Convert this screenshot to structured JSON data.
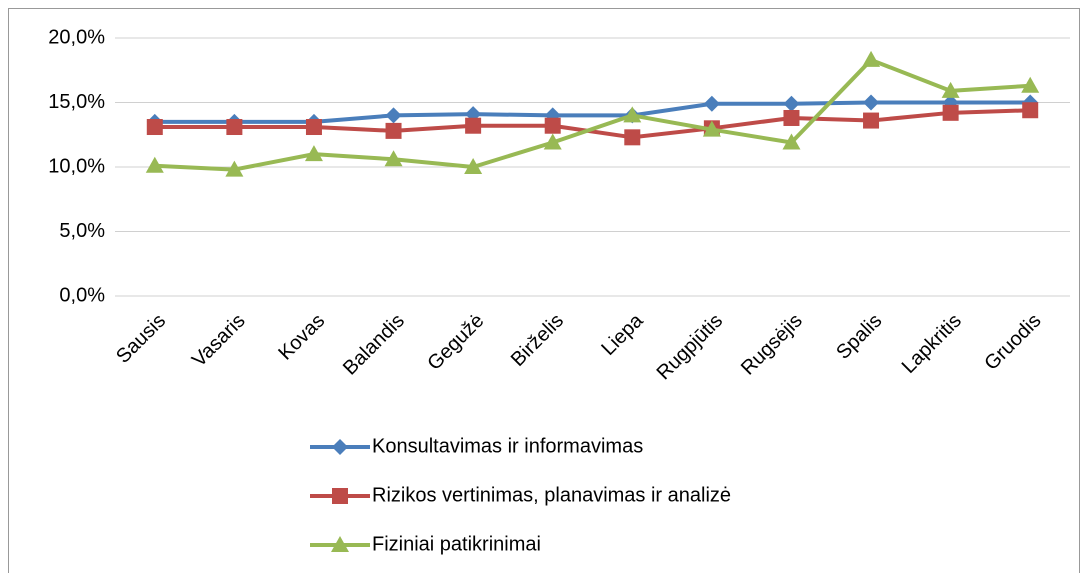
{
  "chart_data": {
    "type": "line",
    "categories": [
      "Sausis",
      "Vasaris",
      "Kovas",
      "Balandis",
      "Gegužė",
      "Birželis",
      "Liepa",
      "Rugpjūtis",
      "Rugsėjis",
      "Spalis",
      "Lapkritis",
      "Gruodis"
    ],
    "series": [
      {
        "name": "Konsultavimas ir informavimas",
        "color": "#4a7ebb",
        "marker": "diamond",
        "values": [
          13.5,
          13.5,
          13.5,
          14.0,
          14.1,
          14.0,
          14.0,
          14.9,
          14.9,
          15.0,
          15.0,
          15.0
        ]
      },
      {
        "name": "Rizikos vertinimas, planavimas ir analizė",
        "color": "#be4b48",
        "marker": "square",
        "values": [
          13.1,
          13.1,
          13.1,
          12.8,
          13.2,
          13.2,
          12.3,
          13.0,
          13.8,
          13.6,
          14.2,
          14.4
        ]
      },
      {
        "name": "Fiziniai patikrinimai",
        "color": "#98b954",
        "marker": "triangle",
        "values": [
          10.1,
          9.8,
          11.0,
          10.6,
          10.0,
          11.9,
          14.0,
          12.9,
          11.9,
          18.3,
          15.9,
          16.3
        ]
      }
    ],
    "ylim": [
      0,
      20
    ],
    "yticks": [
      {
        "value": 0,
        "label": "0,0%"
      },
      {
        "value": 5,
        "label": "5,0%"
      },
      {
        "value": 10,
        "label": "10,0%"
      },
      {
        "value": 15,
        "label": "15,0%"
      },
      {
        "value": 20,
        "label": "20,0%"
      }
    ],
    "grid": true,
    "legend": "bottom"
  }
}
